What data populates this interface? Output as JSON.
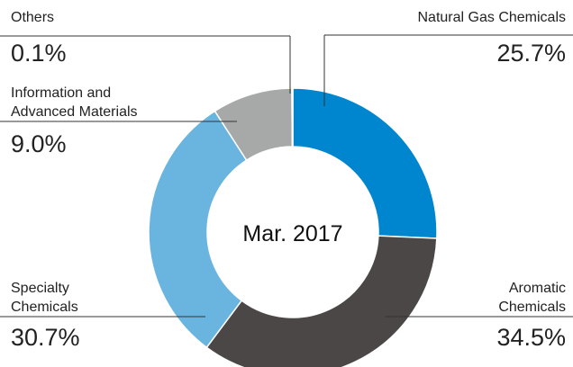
{
  "chart_data": {
    "type": "donut",
    "center_label": "Mar. 2017",
    "categories": [
      "Natural Gas Chemicals",
      "Aromatic Chemicals",
      "Specialty Chemicals",
      "Information and Advanced Materials",
      "Others"
    ],
    "values": [
      25.7,
      34.5,
      30.7,
      9.0,
      0.1
    ],
    "value_labels": [
      "25.7%",
      "34.5%",
      "30.7%",
      "9.0%",
      "0.1%"
    ],
    "colors": [
      "#0085cf",
      "#4a4746",
      "#6ab4e0",
      "#a7a9a8",
      "#d4d4d4"
    ]
  }
}
